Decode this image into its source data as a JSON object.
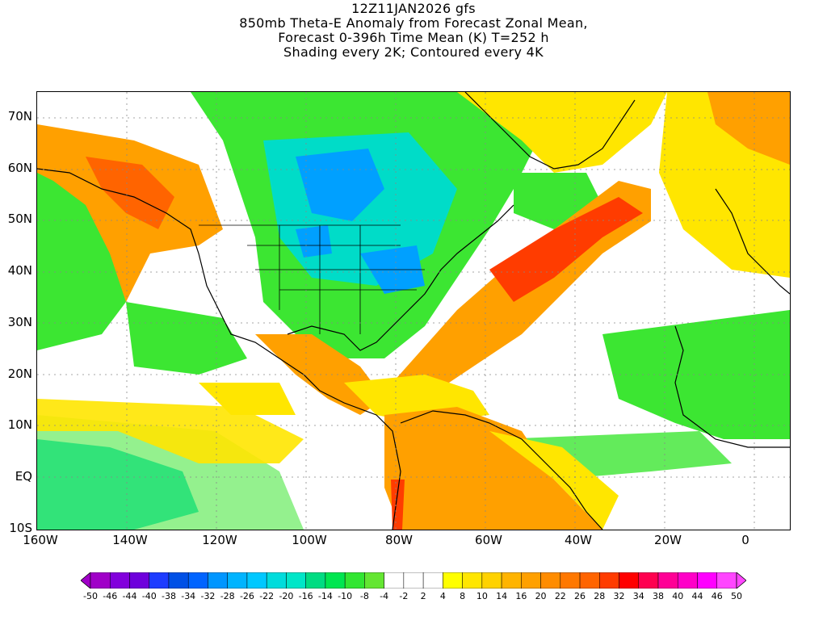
{
  "header": {
    "line1": "12Z11JAN2026 gfs",
    "line2": "850mb Theta-E Anomaly from Forecast Zonal Mean,",
    "line3": "Forecast 0-396h Time Mean (K) T=252 h",
    "line4": "Shading every 2K; Contoured every 4K"
  },
  "axes": {
    "lat_labels": [
      "70N",
      "60N",
      "50N",
      "40N",
      "30N",
      "20N",
      "10N",
      "EQ",
      "10S"
    ],
    "lon_labels": [
      "160W",
      "140W",
      "120W",
      "100W",
      "80W",
      "60W",
      "40W",
      "20W",
      "0"
    ]
  },
  "colorbar": {
    "labels": [
      "-50",
      "-46",
      "-44",
      "-40",
      "-38",
      "-34",
      "-32",
      "-28",
      "-26",
      "-22",
      "-20",
      "-16",
      "-14",
      "-10",
      "-8",
      "-4",
      "-2",
      "2",
      "4",
      "8",
      "10",
      "14",
      "16",
      "20",
      "22",
      "26",
      "28",
      "32",
      "34",
      "38",
      "40",
      "44",
      "46",
      "50"
    ],
    "colors": [
      "#a000c8",
      "#8200dc",
      "#6e00dc",
      "#1e3cff",
      "#0050e6",
      "#0064ff",
      "#0096ff",
      "#00b4ff",
      "#00c8ff",
      "#00dcdc",
      "#00e6c8",
      "#00dc82",
      "#00e650",
      "#32e632",
      "#64e632",
      "#ffffff",
      "#ffffff",
      "#ffffff",
      "#ffff00",
      "#ffe600",
      "#ffd200",
      "#ffb400",
      "#ffa000",
      "#ff8c00",
      "#ff7800",
      "#ff6400",
      "#ff3c00",
      "#ff0000",
      "#ff0050",
      "#ff0096",
      "#ff00c8",
      "#ff00ff",
      "#ff46ff"
    ]
  },
  "map_palette": {
    "green": "#3ce632",
    "light_green": "#82e632",
    "cyan": "#00dcc8",
    "blue": "#00a0ff",
    "yellow": "#ffe600",
    "orange": "#ffa000",
    "red": "#ff3c00",
    "white": "#ffffff"
  }
}
